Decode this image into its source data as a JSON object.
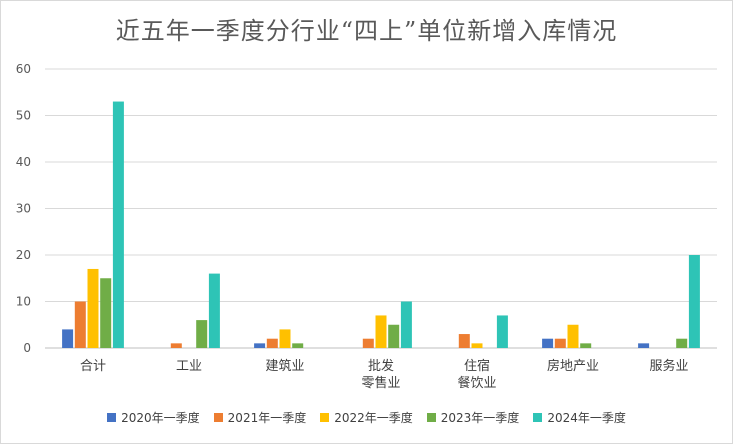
{
  "chart_data": {
    "type": "bar",
    "title": "近五年一季度分行业“四上”单位新增入库情况",
    "categories": [
      "合计",
      "工业",
      "建筑业",
      "批发\n零售业",
      "住宿\n餐饮业",
      "房地产业",
      "服务业"
    ],
    "series": [
      {
        "name": "2020年一季度",
        "color": "#4472c4",
        "values": [
          4,
          0,
          1,
          0,
          0,
          2,
          1
        ]
      },
      {
        "name": "2021年一季度",
        "color": "#ed7d31",
        "values": [
          10,
          1,
          2,
          2,
          3,
          2,
          0
        ]
      },
      {
        "name": "2022年一季度",
        "color": "#ffc000",
        "values": [
          17,
          0,
          4,
          7,
          1,
          5,
          0
        ]
      },
      {
        "name": "2023年一季度",
        "color": "#70ad47",
        "values": [
          15,
          6,
          1,
          5,
          0,
          1,
          2
        ]
      },
      {
        "name": "2024年一季度",
        "color": "#2ec4b6",
        "values": [
          53,
          16,
          0,
          10,
          7,
          0,
          20
        ]
      }
    ],
    "ylim": [
      0,
      60
    ],
    "yticks": [
      0,
      10,
      20,
      30,
      40,
      50,
      60
    ],
    "grid": true,
    "legend": "bottom"
  }
}
